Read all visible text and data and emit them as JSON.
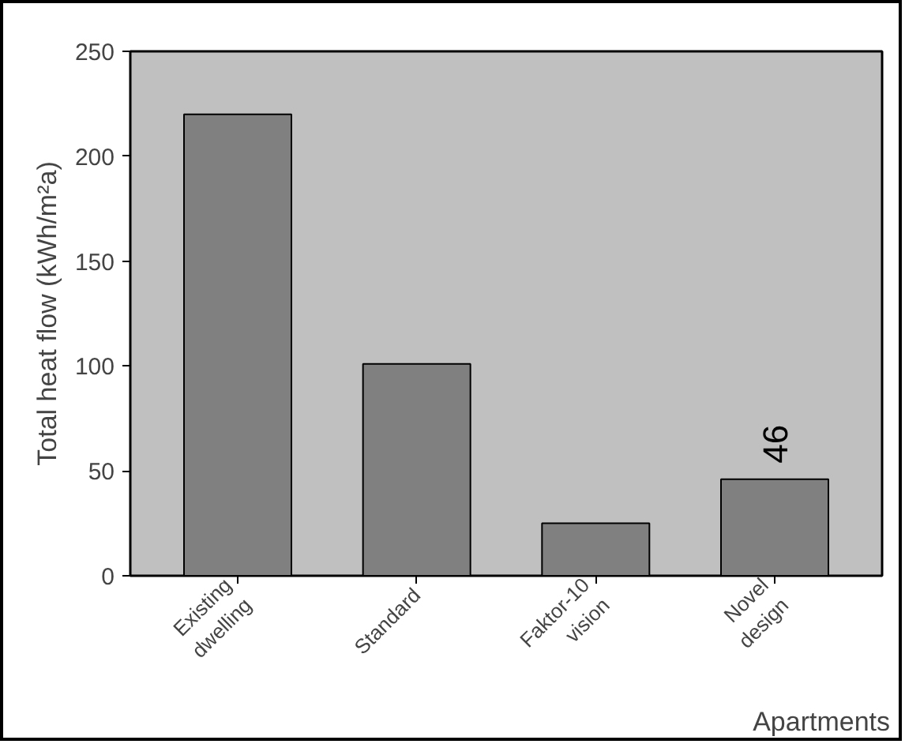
{
  "chart_data": {
    "type": "bar",
    "xlabel": "Apartments",
    "ylabel": "Total heat flow (kWh/m²a)",
    "categories": [
      "Existing\ndwelling",
      "Standard",
      "Faktor-10\nvision",
      "Novel\ndesign"
    ],
    "values": [
      220,
      101,
      25,
      46
    ],
    "value_labels": [
      null,
      null,
      null,
      "46"
    ],
    "color": "#808080",
    "ylim": [
      0,
      250
    ],
    "yticks": [
      0,
      50,
      100,
      150,
      200,
      250
    ],
    "grid": false
  }
}
